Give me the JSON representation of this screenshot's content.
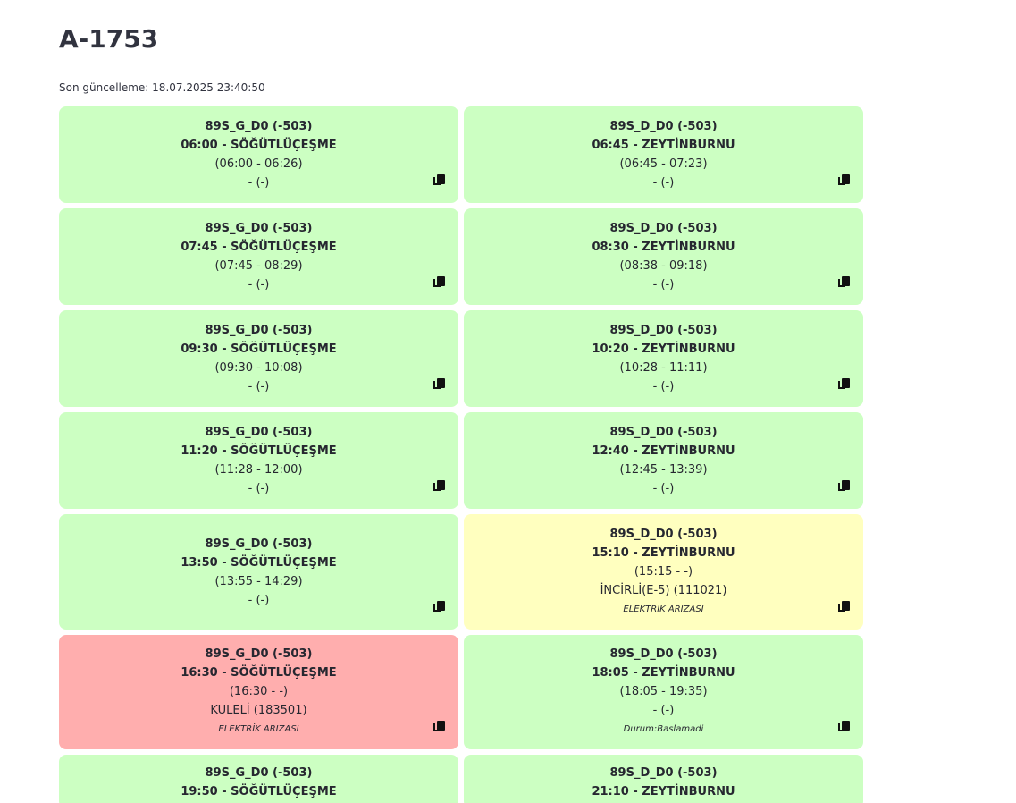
{
  "page": {
    "title": "A-1753",
    "last_updated": "Son güncelleme: 18.07.2025 23:40:50"
  },
  "colors": {
    "ok": "#ccffc2",
    "warning": "#ffffbf",
    "fault": "#ffaeae"
  },
  "icons": {
    "copy": "copy-icon"
  },
  "cards": [
    {
      "status": "green",
      "line1": "89S_G_D0 (-503)",
      "line2": "06:00 - SÖĞÜTLÜÇEŞME",
      "line3": "(06:00 - 06:26)",
      "line4": "- (-)",
      "note": ""
    },
    {
      "status": "green",
      "line1": "89S_D_D0 (-503)",
      "line2": "06:45 - ZEYTİNBURNU",
      "line3": "(06:45 - 07:23)",
      "line4": "- (-)",
      "note": ""
    },
    {
      "status": "green",
      "line1": "89S_G_D0 (-503)",
      "line2": "07:45 - SÖĞÜTLÜÇEŞME",
      "line3": "(07:45 - 08:29)",
      "line4": "- (-)",
      "note": ""
    },
    {
      "status": "green",
      "line1": "89S_D_D0 (-503)",
      "line2": "08:30 - ZEYTİNBURNU",
      "line3": "(08:38 - 09:18)",
      "line4": "- (-)",
      "note": ""
    },
    {
      "status": "green",
      "line1": "89S_G_D0 (-503)",
      "line2": "09:30 - SÖĞÜTLÜÇEŞME",
      "line3": "(09:30 - 10:08)",
      "line4": "- (-)",
      "note": ""
    },
    {
      "status": "green",
      "line1": "89S_D_D0 (-503)",
      "line2": "10:20 - ZEYTİNBURNU",
      "line3": "(10:28 - 11:11)",
      "line4": "- (-)",
      "note": ""
    },
    {
      "status": "green",
      "line1": "89S_G_D0 (-503)",
      "line2": "11:20 - SÖĞÜTLÜÇEŞME",
      "line3": "(11:28 - 12:00)",
      "line4": "- (-)",
      "note": ""
    },
    {
      "status": "green",
      "line1": "89S_D_D0 (-503)",
      "line2": "12:40 - ZEYTİNBURNU",
      "line3": "(12:45 - 13:39)",
      "line4": "- (-)",
      "note": ""
    },
    {
      "status": "green",
      "line1": "89S_G_D0 (-503)",
      "line2": "13:50 - SÖĞÜTLÜÇEŞME",
      "line3": "(13:55 - 14:29)",
      "line4": "- (-)",
      "note": ""
    },
    {
      "status": "yellow",
      "line1": "89S_D_D0 (-503)",
      "line2": "15:10 - ZEYTİNBURNU",
      "line3": "(15:15 - -)",
      "line4": "İNCİRLİ(E-5) (111021)",
      "note": "ELEKTRİK ARIZASI"
    },
    {
      "status": "red",
      "line1": "89S_G_D0 (-503)",
      "line2": "16:30 - SÖĞÜTLÜÇEŞME",
      "line3": "(16:30 - -)",
      "line4": "KULELİ (183501)",
      "note": "ELEKTRİK ARIZASI"
    },
    {
      "status": "green",
      "line1": "89S_D_D0 (-503)",
      "line2": "18:05 - ZEYTİNBURNU",
      "line3": "(18:05 - 19:35)",
      "line4": "- (-)",
      "note": "Durum:Baslamadi"
    },
    {
      "status": "green",
      "line1": "89S_G_D0 (-503)",
      "line2": "19:50 - SÖĞÜTLÜÇEŞME",
      "line3": "",
      "line4": "",
      "note": ""
    },
    {
      "status": "green",
      "line1": "89S_D_D0 (-503)",
      "line2": "21:10 - ZEYTİNBURNU",
      "line3": "",
      "line4": "",
      "note": ""
    }
  ]
}
